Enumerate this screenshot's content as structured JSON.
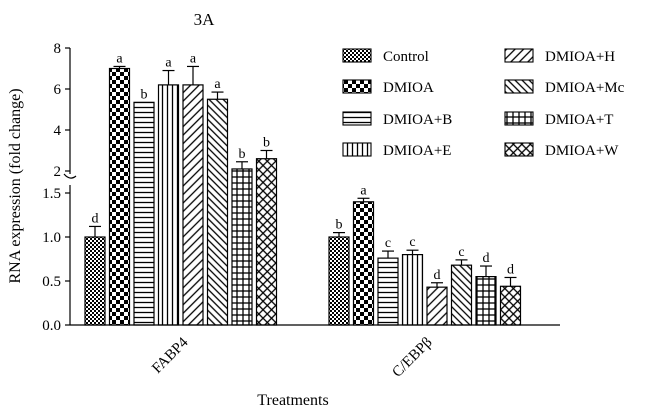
{
  "chart_data": {
    "type": "bar",
    "title": "3A",
    "xlabel": "Treatments",
    "ylabel": "RNA expression (fold change)",
    "y_axis": "broken",
    "upper_segment": {
      "range": [
        2,
        8
      ],
      "ticks": [
        "2",
        "4",
        "6",
        "8"
      ]
    },
    "lower_segment": {
      "range": [
        0,
        1.5
      ],
      "ticks": [
        "0.0",
        "0.5",
        "1.0",
        "1.5"
      ]
    },
    "categories": [
      "FABP4",
      "C/EBPβ"
    ],
    "legend_placement": "top-right",
    "series": [
      {
        "name": "Control",
        "pattern": "checker-small",
        "values": [
          1.0,
          1.0
        ],
        "errors": [
          0.12,
          0.05
        ],
        "labels": [
          "d",
          "b"
        ]
      },
      {
        "name": "DMIOA",
        "pattern": "checker-large",
        "values": [
          7.0,
          1.4
        ],
        "errors": [
          0.1,
          0.04
        ],
        "labels": [
          "a",
          "a"
        ]
      },
      {
        "name": "DMIOA+B",
        "pattern": "hlines",
        "values": [
          5.35,
          0.76
        ],
        "errors": [
          0.0,
          0.08
        ],
        "labels": [
          "b",
          "c"
        ]
      },
      {
        "name": "DMIOA+E",
        "pattern": "vlines",
        "values": [
          6.2,
          0.8
        ],
        "errors": [
          0.7,
          0.05
        ],
        "labels": [
          "a",
          "c"
        ]
      },
      {
        "name": "DMIOA+H",
        "pattern": "diag-up",
        "values": [
          6.2,
          0.43
        ],
        "errors": [
          0.9,
          0.05
        ],
        "labels": [
          "a",
          "d"
        ]
      },
      {
        "name": "DMIOA+Mc",
        "pattern": "diag-down",
        "values": [
          5.5,
          0.68
        ],
        "errors": [
          0.35,
          0.06
        ],
        "labels": [
          "a",
          "c"
        ]
      },
      {
        "name": "DMIOA+T",
        "pattern": "grid",
        "values": [
          2.1,
          0.55
        ],
        "errors": [
          0.35,
          0.12
        ],
        "labels": [
          "b",
          "d"
        ]
      },
      {
        "name": "DMIOA+W",
        "pattern": "crosshatch",
        "values": [
          2.6,
          0.44
        ],
        "errors": [
          0.4,
          0.1
        ],
        "labels": [
          "b",
          "d"
        ]
      }
    ]
  }
}
